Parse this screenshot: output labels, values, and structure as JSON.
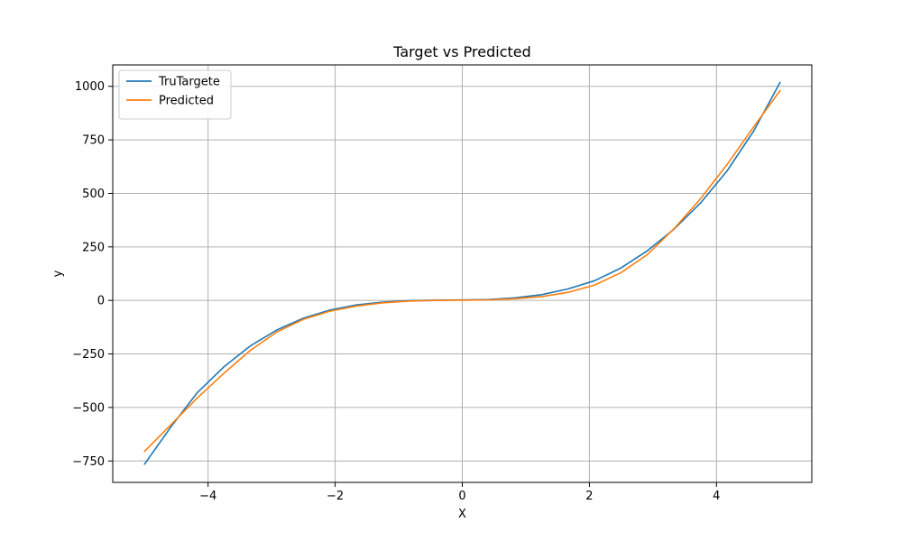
{
  "chart_data": {
    "type": "line",
    "title": "Target vs Predicted",
    "xlabel": "X",
    "ylabel": "y",
    "xlim": [
      -5.5,
      5.5
    ],
    "ylim": [
      -850,
      1100
    ],
    "xticks": [
      -4,
      -2,
      0,
      2,
      4
    ],
    "yticks": [
      -750,
      -500,
      -250,
      0,
      250,
      500,
      750,
      1000
    ],
    "grid": true,
    "legend": "upper-left",
    "x": [
      -5.0,
      -4.583,
      -4.167,
      -3.75,
      -3.333,
      -2.917,
      -2.5,
      -2.083,
      -1.667,
      -1.25,
      -0.833,
      -0.417,
      0.0,
      0.417,
      0.833,
      1.25,
      1.667,
      2.083,
      2.5,
      2.917,
      3.333,
      3.75,
      4.167,
      4.583,
      5.0
    ],
    "series": [
      {
        "name": "TruTargete",
        "color": "#1f77b4",
        "values": [
          -765,
          -590,
          -430,
          -310,
          -212,
          -138,
          -83,
          -45,
          -21,
          -8,
          -1,
          1,
          2,
          4,
          12,
          27,
          54,
          92,
          152,
          233,
          333,
          455,
          605,
          790,
          1018
        ]
      },
      {
        "name": "Predicted",
        "color": "#ff7f0e",
        "values": [
          -705,
          -580,
          -455,
          -340,
          -233,
          -147,
          -88,
          -50,
          -26,
          -11,
          -3,
          0,
          1,
          3,
          8,
          18,
          38,
          72,
          130,
          215,
          335,
          475,
          635,
          810,
          980
        ]
      }
    ]
  }
}
